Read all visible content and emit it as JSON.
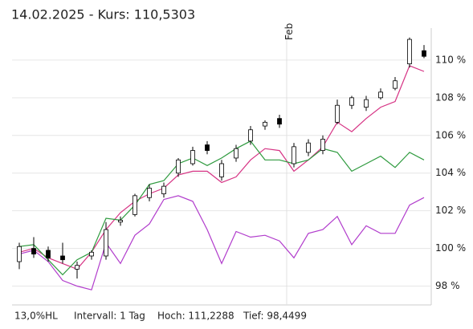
{
  "chart_data": {
    "type": "candlestick",
    "title": "14.02.2025  - Kurs: 110,5303",
    "footer": [
      "13,0%HL",
      "Intervall: 1 Tag",
      "Hoch: 111,2288",
      "Tief: 98,4499"
    ],
    "categories": [
      null,
      null,
      null,
      null,
      null,
      null,
      null,
      null,
      null,
      null,
      null,
      null,
      null,
      null,
      null,
      null,
      null,
      null,
      null,
      "Feb",
      null,
      null,
      null,
      null,
      null,
      null,
      null,
      null,
      null
    ],
    "ohlc": {
      "open": [
        99.3,
        100.0,
        99.9,
        99.6,
        98.9,
        99.6,
        99.6,
        101.4,
        101.8,
        102.7,
        102.9,
        104.0,
        104.5,
        105.5,
        103.8,
        104.8,
        105.7,
        106.5,
        106.9,
        104.5,
        105.1,
        105.2,
        106.7,
        107.6,
        107.5,
        108.0,
        108.5,
        109.8,
        110.5
      ],
      "high": [
        100.3,
        100.6,
        100.1,
        100.3,
        99.3,
        99.9,
        101.4,
        101.7,
        102.9,
        103.4,
        103.5,
        104.8,
        105.4,
        105.7,
        104.7,
        105.5,
        106.5,
        106.8,
        107.1,
        105.6,
        105.8,
        106.0,
        107.9,
        108.1,
        108.1,
        108.5,
        109.1,
        111.2,
        110.8
      ],
      "low": [
        98.9,
        99.5,
        99.3,
        99.2,
        98.4,
        99.4,
        99.4,
        101.2,
        101.7,
        102.5,
        102.7,
        103.8,
        104.4,
        105.0,
        103.6,
        104.6,
        105.5,
        106.3,
        106.4,
        104.3,
        104.9,
        105.0,
        106.6,
        107.4,
        107.3,
        107.9,
        108.4,
        109.6,
        110.1
      ],
      "close": [
        100.1,
        99.7,
        99.5,
        99.4,
        99.1,
        99.8,
        101.0,
        101.5,
        102.8,
        103.2,
        103.3,
        104.7,
        105.2,
        105.2,
        104.5,
        105.3,
        106.3,
        106.7,
        106.6,
        105.4,
        105.6,
        105.8,
        107.6,
        108.0,
        107.9,
        108.3,
        108.9,
        111.1,
        110.2
      ]
    },
    "series": [
      {
        "color": "#d63384",
        "values": [
          99.8,
          100.0,
          99.5,
          99.2,
          98.9,
          99.8,
          101.0,
          101.9,
          102.5,
          102.9,
          103.2,
          103.9,
          104.1,
          104.1,
          103.5,
          103.8,
          104.7,
          105.3,
          105.2,
          104.1,
          104.7,
          105.4,
          106.7,
          106.2,
          106.9,
          107.5,
          107.8,
          109.7,
          109.4
        ]
      },
      {
        "color": "#2e9a3e",
        "values": [
          100.1,
          100.2,
          99.4,
          98.6,
          99.4,
          99.8,
          101.6,
          101.5,
          102.3,
          103.4,
          103.6,
          104.5,
          104.8,
          104.4,
          104.8,
          105.3,
          105.7,
          104.7,
          104.7,
          104.5,
          104.7,
          105.3,
          105.1,
          104.1,
          104.5,
          104.9,
          104.3,
          105.1,
          104.7
        ]
      },
      {
        "color": "#b13ccc",
        "values": [
          99.7,
          99.9,
          99.3,
          98.3,
          98.0,
          97.8,
          100.3,
          99.2,
          100.7,
          101.3,
          102.6,
          102.8,
          102.5,
          101.0,
          99.2,
          100.9,
          100.6,
          100.7,
          100.4,
          99.5,
          100.8,
          101.0,
          101.7,
          100.2,
          101.2,
          100.8,
          100.8,
          102.3,
          102.7
        ]
      }
    ],
    "ylim": [
      97,
      111.7
    ],
    "yticks": [
      {
        "value": 98,
        "label": "98 %"
      },
      {
        "value": 100,
        "label": "100 %"
      },
      {
        "value": 102,
        "label": "102 %"
      },
      {
        "value": 104,
        "label": "104 %"
      },
      {
        "value": 106,
        "label": "106 %"
      },
      {
        "value": 108,
        "label": "108 %"
      },
      {
        "value": 110,
        "label": "110 %"
      }
    ],
    "grid": true
  }
}
